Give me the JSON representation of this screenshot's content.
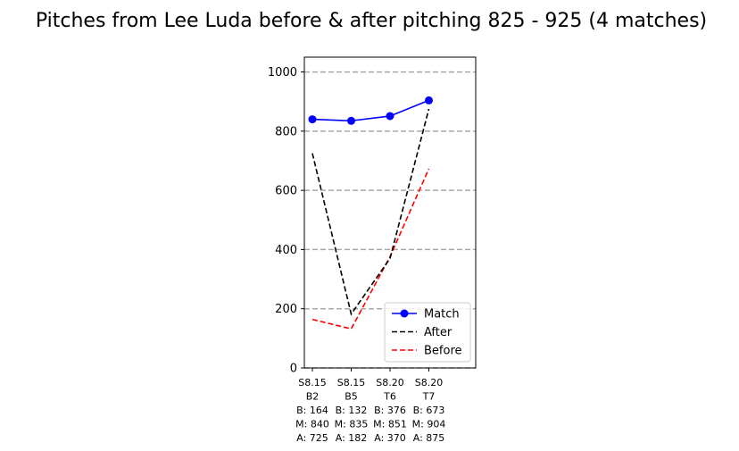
{
  "chart_data": {
    "type": "line",
    "title": "Pitches from Lee Luda before & after pitching 825 - 925 (4 matches)",
    "xlabel": "",
    "ylabel": "",
    "ylim": [
      0,
      1050
    ],
    "yticks": [
      0,
      200,
      400,
      600,
      800,
      1000
    ],
    "hlines": [
      0,
      200,
      400,
      600,
      800,
      1000
    ],
    "grid": "horizontal dashed reference lines",
    "legend": "lower-right",
    "categories": [
      [
        "S8.15",
        "B2",
        "B: 164",
        "M: 840",
        "A: 725"
      ],
      [
        "S8.15",
        "B5",
        "B: 132",
        "M: 835",
        "A: 182"
      ],
      [
        "S8.20",
        "T6",
        "B: 376",
        "M: 851",
        "A: 370"
      ],
      [
        "S8.20",
        "T7",
        "B: 673",
        "M: 904",
        "A: 875"
      ]
    ],
    "series": [
      {
        "name": "Match",
        "values": [
          840,
          835,
          851,
          904
        ],
        "color": "#0000ff",
        "style": "solid",
        "marker": "circle"
      },
      {
        "name": "After",
        "values": [
          725,
          182,
          370,
          875
        ],
        "color": "#000000",
        "style": "dashed"
      },
      {
        "name": "Before",
        "values": [
          164,
          132,
          376,
          673
        ],
        "color": "#ff0000",
        "style": "dashed"
      }
    ]
  }
}
